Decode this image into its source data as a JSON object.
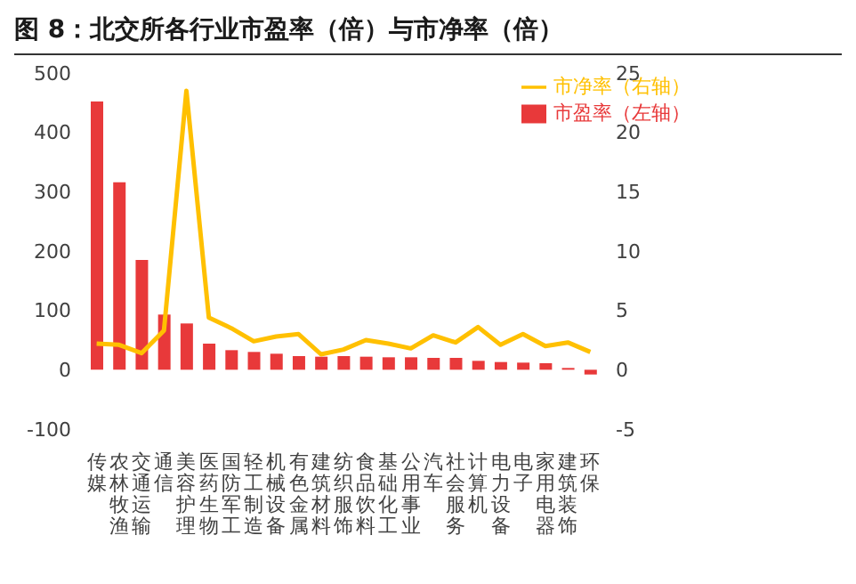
{
  "chart_data": {
    "type": "bar",
    "title": "图 8：北交所各行业市盈率（倍）与市净率（倍）",
    "categories": [
      "传媒",
      "农林牧渔",
      "交通运输",
      "通信",
      "美容护理",
      "医药生物",
      "国防军工",
      "轻工制造",
      "机械设备",
      "有色金属",
      "建筑材料",
      "纺织服饰",
      "食品饮料",
      "基础化工",
      "公用事业",
      "汽车",
      "社会服务",
      "计算机",
      "电力设备",
      "电子",
      "家用电器",
      "建筑装饰",
      "环保"
    ],
    "series": [
      {
        "name": "市盈率（左轴）",
        "color": "#e8393a",
        "values": [
          452,
          316,
          185,
          93,
          78,
          44,
          33,
          30,
          27,
          23,
          22,
          23,
          22,
          21,
          21,
          20,
          20,
          15,
          13,
          12,
          11,
          3,
          -8
        ]
      },
      {
        "name": "市净率（右轴）",
        "type": "line",
        "axis": "y2",
        "color": "#ffc000",
        "values": [
          2.2,
          2.1,
          1.4,
          3.3,
          23.5,
          4.4,
          3.5,
          2.4,
          2.8,
          3.0,
          1.3,
          1.7,
          2.5,
          2.2,
          1.8,
          2.9,
          2.3,
          3.6,
          2.1,
          3.0,
          2.0,
          2.3,
          1.5
        ]
      }
    ],
    "ylim": [
      -100,
      500
    ],
    "yticks": [
      -100,
      0,
      100,
      200,
      300,
      400,
      500
    ],
    "y2lim": [
      -5,
      25
    ],
    "y2ticks": [
      -5,
      0,
      5,
      10,
      15,
      20,
      25
    ],
    "grid": false,
    "legend": "top right",
    "marker": "none"
  }
}
